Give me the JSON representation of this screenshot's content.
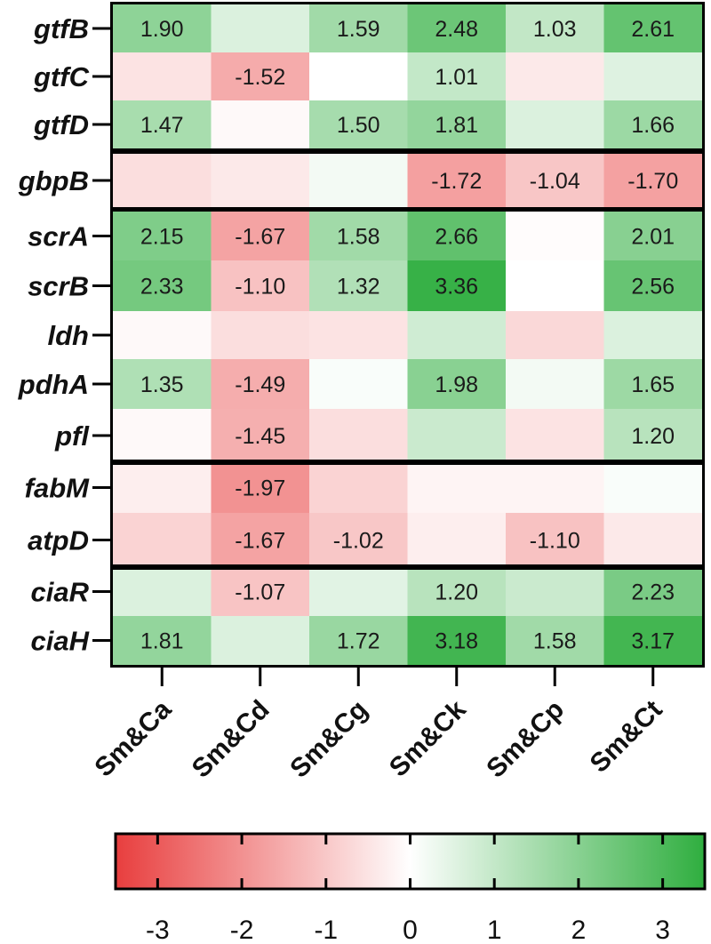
{
  "chart_data": {
    "type": "heatmap",
    "rows": [
      "gtfB",
      "gtfC",
      "gtfD",
      "gbpB",
      "scrA",
      "scrB",
      "ldh",
      "pdhA",
      "pfl",
      "fabM",
      "atpD",
      "ciaR",
      "ciaH"
    ],
    "columns": [
      "Sm&Ca",
      "Sm&Cd",
      "Sm&Cg",
      "Sm&Ck",
      "Sm&Cp",
      "Sm&Ct"
    ],
    "row_groups": [
      {
        "rows": [
          "gtfB",
          "gtfC",
          "gtfD"
        ]
      },
      {
        "rows": [
          "gbpB"
        ]
      },
      {
        "rows": [
          "scrA",
          "scrB",
          "ldh",
          "pdhA",
          "pfl"
        ]
      },
      {
        "rows": [
          "fabM",
          "atpD"
        ]
      },
      {
        "rows": [
          "ciaR",
          "ciaH"
        ]
      }
    ],
    "values": [
      [
        1.9,
        0.6,
        1.59,
        2.48,
        1.03,
        2.61
      ],
      [
        -0.5,
        -1.52,
        0.0,
        1.01,
        -0.4,
        0.55
      ],
      [
        1.47,
        -0.1,
        1.5,
        1.81,
        0.6,
        1.66
      ],
      [
        -0.6,
        -0.4,
        0.2,
        -1.72,
        -1.04,
        -1.7
      ],
      [
        2.15,
        -1.67,
        1.58,
        2.66,
        -0.05,
        2.01
      ],
      [
        2.33,
        -1.1,
        1.32,
        3.36,
        0.0,
        2.56
      ],
      [
        -0.1,
        -0.6,
        -0.5,
        0.8,
        -0.7,
        0.6
      ],
      [
        1.35,
        -1.49,
        0.1,
        1.98,
        0.2,
        1.65
      ],
      [
        -0.1,
        -1.45,
        -0.6,
        0.9,
        -0.5,
        1.2
      ],
      [
        -0.3,
        -1.97,
        -0.8,
        -0.2,
        -0.2,
        0.1
      ],
      [
        -0.8,
        -1.67,
        -1.02,
        -0.3,
        -1.1,
        -0.4
      ],
      [
        0.6,
        -1.07,
        0.5,
        1.2,
        0.9,
        2.23
      ],
      [
        1.81,
        0.6,
        1.72,
        3.18,
        1.58,
        3.17
      ]
    ],
    "labels": [
      [
        "1.90",
        "",
        "1.59",
        "2.48",
        "1.03",
        "2.61"
      ],
      [
        "",
        "-1.52",
        "",
        "1.01",
        "",
        ""
      ],
      [
        "1.47",
        "",
        "1.50",
        "1.81",
        "",
        "1.66"
      ],
      [
        "",
        "",
        "",
        "-1.72",
        "-1.04",
        "-1.70"
      ],
      [
        "2.15",
        "-1.67",
        "1.58",
        "2.66",
        "",
        "2.01"
      ],
      [
        "2.33",
        "-1.10",
        "1.32",
        "3.36",
        "",
        "2.56"
      ],
      [
        "",
        "",
        "",
        "",
        "",
        ""
      ],
      [
        "1.35",
        "-1.49",
        "",
        "1.98",
        "",
        "1.65"
      ],
      [
        "",
        "-1.45",
        "",
        "",
        "",
        "1.20"
      ],
      [
        "",
        "-1.97",
        "",
        "",
        "",
        ""
      ],
      [
        "",
        "-1.67",
        "-1.02",
        "",
        "-1.10",
        ""
      ],
      [
        "",
        "-1.07",
        "",
        "1.20",
        "",
        "2.23"
      ],
      [
        "1.81",
        "",
        "1.72",
        "3.18",
        "1.58",
        "3.17"
      ]
    ],
    "colorbar": {
      "range": [
        -3.5,
        3.5
      ],
      "ticks": [
        -3,
        -2,
        -1,
        0,
        1,
        2,
        3
      ],
      "tick_labels": [
        "-3",
        "-2",
        "-1",
        "0",
        "1",
        "2",
        "3"
      ],
      "low_color": "#e83e3e",
      "mid_color": "#ffffff",
      "high_color": "#2fae3f"
    }
  }
}
